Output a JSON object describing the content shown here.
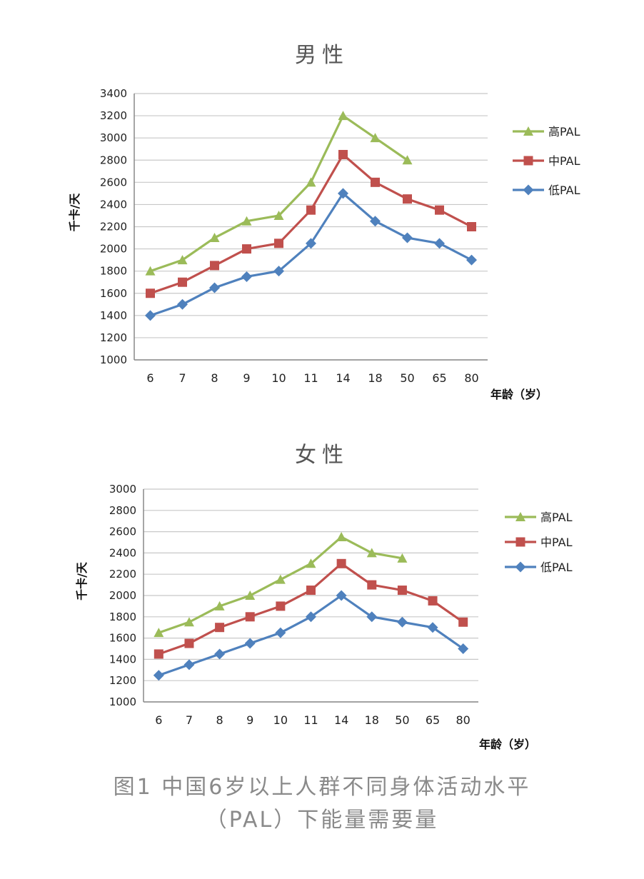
{
  "caption": {
    "line1": "图1 中国6岁以上人群不同身体活动水平",
    "line2": "（PAL）下能量需要量"
  },
  "colors": {
    "high": "#9bbb59",
    "mid": "#c0504d",
    "low": "#4f81bd",
    "grid": "#c8c8c8"
  },
  "chart_data": [
    {
      "type": "line",
      "title": "男性",
      "xlabel": "年龄（岁）",
      "ylabel": "千卡/天",
      "categories": [
        "6",
        "7",
        "8",
        "9",
        "10",
        "11",
        "14",
        "18",
        "50",
        "65",
        "80"
      ],
      "ylim": [
        1000,
        3400
      ],
      "yticks": [
        1000,
        1200,
        1400,
        1600,
        1800,
        2000,
        2200,
        2400,
        2600,
        2800,
        3000,
        3200,
        3400
      ],
      "grid": true,
      "legend": "right",
      "series": [
        {
          "name": "高PAL",
          "key": "high",
          "marker": "triangle",
          "values": [
            1800,
            1900,
            2100,
            2250,
            2300,
            2600,
            3200,
            3000,
            2800,
            null,
            null
          ]
        },
        {
          "name": "中PAL",
          "key": "mid",
          "marker": "square",
          "values": [
            1600,
            1700,
            1850,
            2000,
            2050,
            2350,
            2850,
            2600,
            2450,
            2350,
            2200
          ]
        },
        {
          "name": "低PAL",
          "key": "low",
          "marker": "diamond",
          "values": [
            1400,
            1500,
            1650,
            1750,
            1800,
            2050,
            2500,
            2250,
            2100,
            2050,
            1900
          ]
        }
      ]
    },
    {
      "type": "line",
      "title": "女性",
      "xlabel": "年龄（岁）",
      "ylabel": "千卡/天",
      "categories": [
        "6",
        "7",
        "8",
        "9",
        "10",
        "11",
        "14",
        "18",
        "50",
        "65",
        "80"
      ],
      "ylim": [
        1000,
        3000
      ],
      "yticks": [
        1000,
        1200,
        1400,
        1600,
        1800,
        2000,
        2200,
        2400,
        2600,
        2800,
        3000
      ],
      "grid": true,
      "legend": "right",
      "series": [
        {
          "name": "高PAL",
          "key": "high",
          "marker": "triangle",
          "values": [
            1650,
            1750,
            1900,
            2000,
            2150,
            2300,
            2550,
            2400,
            2350,
            null,
            null
          ]
        },
        {
          "name": "中PAL",
          "key": "mid",
          "marker": "square",
          "values": [
            1450,
            1550,
            1700,
            1800,
            1900,
            2050,
            2300,
            2100,
            2050,
            1950,
            1750
          ]
        },
        {
          "name": "低PAL",
          "key": "low",
          "marker": "diamond",
          "values": [
            1250,
            1350,
            1450,
            1550,
            1650,
            1800,
            2000,
            1800,
            1750,
            1700,
            1500
          ]
        }
      ]
    }
  ]
}
